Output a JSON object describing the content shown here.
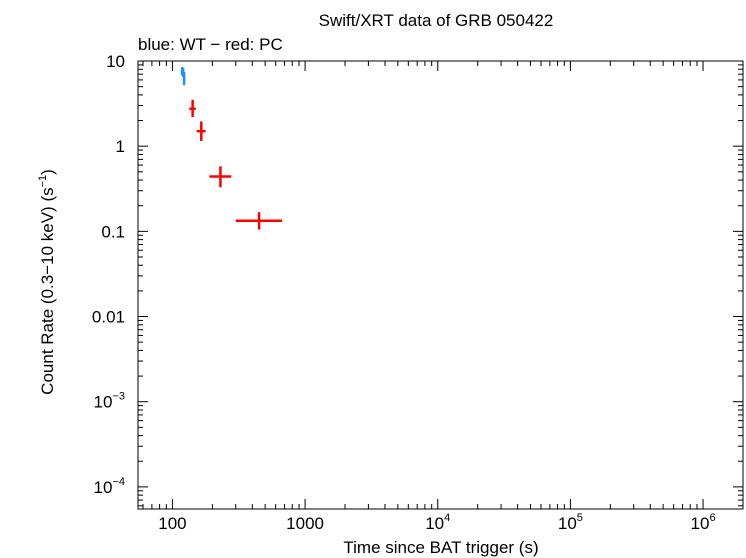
{
  "chart_data": {
    "type": "scatter",
    "title": "Swift/XRT data of GRB 050422",
    "subtitle": "blue: WT − red: PC",
    "xlabel": "Time since BAT trigger (s)",
    "ylabel_main": "Count Rate (0.3−10 keV) (s",
    "ylabel_sup": "−1",
    "ylabel_end": ")",
    "xscale": "log",
    "yscale": "log",
    "xlim": [
      55,
      2000000
    ],
    "ylim": [
      5.5e-05,
      10
    ],
    "x_ticks": [
      {
        "value": 100,
        "base": "100",
        "exp": ""
      },
      {
        "value": 1000,
        "base": "1000",
        "exp": ""
      },
      {
        "value": 10000,
        "base": "10",
        "exp": "4"
      },
      {
        "value": 100000,
        "base": "10",
        "exp": "5"
      },
      {
        "value": 1000000,
        "base": "10",
        "exp": "6"
      }
    ],
    "y_ticks": [
      {
        "value": 10,
        "base": "10",
        "exp": ""
      },
      {
        "value": 1,
        "base": "1",
        "exp": ""
      },
      {
        "value": 0.1,
        "base": "0.1",
        "exp": ""
      },
      {
        "value": 0.01,
        "base": "0.01",
        "exp": ""
      },
      {
        "value": 0.001,
        "base": "10",
        "exp": "−3"
      },
      {
        "value": 0.0001,
        "base": "10",
        "exp": "−4"
      }
    ],
    "series": [
      {
        "name": "WT",
        "color": "#1e90ff",
        "points": [
          {
            "x": 118.5,
            "xlo": 117.5,
            "xhi": 119.5,
            "y": 7.6,
            "ylo": 6.8,
            "yhi": 8.5
          },
          {
            "x": 120.5,
            "xlo": 119.5,
            "xhi": 121.5,
            "y": 7.3,
            "ylo": 6.5,
            "yhi": 8.2
          },
          {
            "x": 122.5,
            "xlo": 121.5,
            "xhi": 123.5,
            "y": 6.2,
            "ylo": 5.2,
            "yhi": 7.4
          }
        ]
      },
      {
        "name": "PC",
        "color": "#ff0000",
        "points": [
          {
            "x": 142,
            "xlo": 134,
            "xhi": 150,
            "y": 2.75,
            "ylo": 2.2,
            "yhi": 3.5
          },
          {
            "x": 165,
            "xlo": 152,
            "xhi": 178,
            "y": 1.5,
            "ylo": 1.15,
            "yhi": 1.95
          },
          {
            "x": 230,
            "xlo": 190,
            "xhi": 278,
            "y": 0.44,
            "ylo": 0.33,
            "yhi": 0.58
          },
          {
            "x": 450,
            "xlo": 300,
            "xhi": 670,
            "y": 0.133,
            "ylo": 0.105,
            "yhi": 0.168
          }
        ]
      }
    ]
  }
}
